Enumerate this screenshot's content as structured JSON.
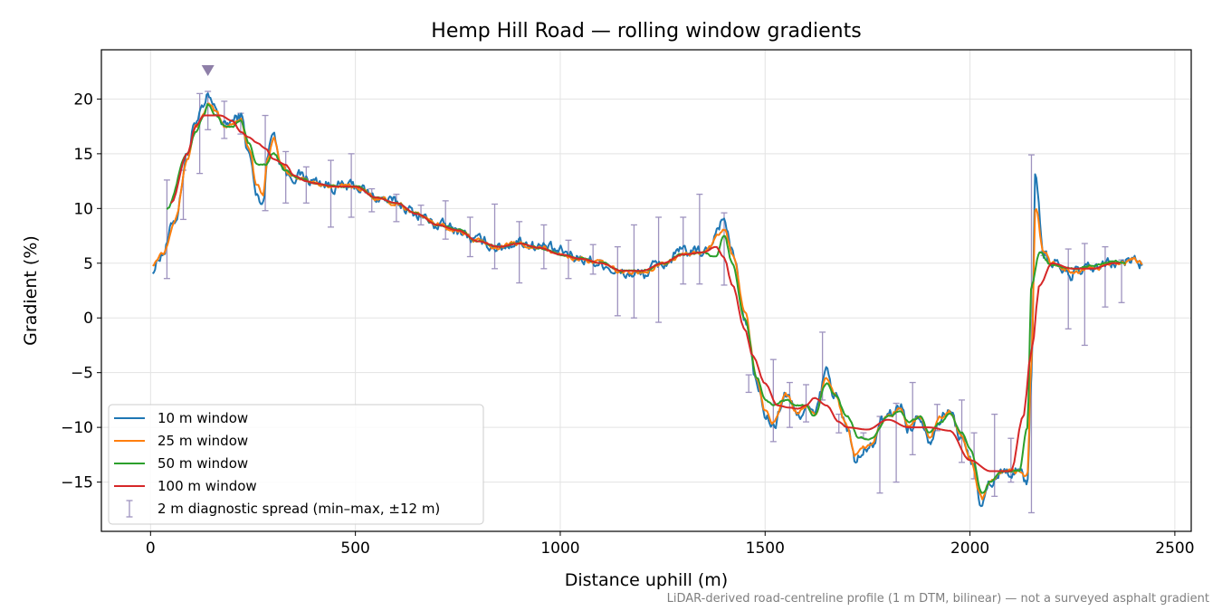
{
  "chart_data": {
    "type": "line",
    "title": "Hemp Hill Road — rolling window gradients",
    "xlabel": "Distance uphill (m)",
    "ylabel": "Gradient (%)",
    "footnote": "LiDAR-derived road-centreline profile (1 m DTM, bilinear) — not a surveyed asphalt gradient",
    "xlim": [
      -120,
      2540
    ],
    "ylim": [
      -19.5,
      24.5
    ],
    "xticks": [
      0,
      500,
      1000,
      1500,
      2000,
      2500
    ],
    "yticks": [
      -15,
      -10,
      -5,
      0,
      5,
      10,
      15,
      20
    ],
    "ytick_labels": [
      "−15",
      "−10",
      "−5",
      "0",
      "5",
      "10",
      "15",
      "20"
    ],
    "grid": true,
    "legend_position": "lower-left",
    "peak_marker": {
      "x": 140,
      "y": 22.6,
      "color": "#8e7fa8"
    },
    "colors": {
      "10m": "#1f77b4",
      "25m": "#ff7f0e",
      "50m": "#2ca02c",
      "100m": "#d62728",
      "spread": "#9e93bf"
    },
    "series": [
      {
        "name": "10 m window",
        "color": "#1f77b4",
        "noise": 0.9,
        "x": [
          5,
          30,
          60,
          90,
          110,
          130,
          140,
          160,
          180,
          200,
          220,
          240,
          260,
          275,
          285,
          300,
          320,
          340,
          360,
          400,
          450,
          500,
          550,
          600,
          650,
          700,
          750,
          800,
          850,
          900,
          950,
          1000,
          1050,
          1100,
          1150,
          1200,
          1250,
          1300,
          1350,
          1400,
          1420,
          1450,
          1480,
          1500,
          1520,
          1550,
          1580,
          1600,
          1620,
          1650,
          1670,
          1700,
          1720,
          1750,
          1800,
          1830,
          1850,
          1880,
          1900,
          1930,
          1950,
          1980,
          2000,
          2030,
          2050,
          2080,
          2100,
          2120,
          2140,
          2150,
          2160,
          2180,
          2200,
          2250,
          2300,
          2350,
          2380,
          2400,
          2420
        ],
        "y": [
          4.5,
          6,
          9,
          15,
          18,
          19,
          20,
          19,
          17.5,
          18,
          18.5,
          15,
          11,
          10.5,
          15,
          17,
          14,
          13,
          13,
          12.5,
          12,
          12,
          11,
          10.5,
          9.5,
          8.5,
          8,
          7,
          6.5,
          7,
          6.5,
          6,
          5.5,
          5,
          4,
          4,
          5,
          6,
          6,
          9,
          6,
          0,
          -6,
          -9,
          -10,
          -7,
          -9,
          -8,
          -9,
          -5,
          -7,
          -10,
          -13,
          -12,
          -9,
          -8,
          -10,
          -9,
          -11,
          -9,
          -8.5,
          -11,
          -13,
          -17,
          -15,
          -14,
          -14,
          -14,
          -15,
          -5,
          13,
          6,
          5,
          4,
          4.5,
          5,
          5,
          5.5,
          5
        ]
      },
      {
        "name": "25 m window",
        "color": "#ff7f0e",
        "noise": 0.35,
        "x": [
          5,
          30,
          60,
          90,
          110,
          130,
          140,
          160,
          180,
          200,
          220,
          240,
          260,
          275,
          285,
          300,
          320,
          340,
          360,
          400,
          450,
          500,
          550,
          600,
          650,
          700,
          750,
          800,
          850,
          900,
          950,
          1000,
          1050,
          1100,
          1150,
          1200,
          1250,
          1300,
          1350,
          1400,
          1420,
          1450,
          1480,
          1500,
          1520,
          1550,
          1580,
          1600,
          1620,
          1650,
          1670,
          1700,
          1720,
          1750,
          1800,
          1830,
          1850,
          1880,
          1900,
          1930,
          1950,
          1980,
          2000,
          2030,
          2050,
          2080,
          2100,
          2120,
          2140,
          2150,
          2160,
          2180,
          2200,
          2250,
          2300,
          2350,
          2380,
          2400,
          2420
        ],
        "y": [
          5,
          6,
          9,
          14.5,
          17.5,
          18.5,
          19.5,
          18.8,
          17.5,
          17.8,
          18.2,
          15.5,
          12,
          11.2,
          14.5,
          16.5,
          14,
          13,
          12.8,
          12.3,
          12,
          12,
          11,
          10.5,
          9.5,
          8.5,
          8,
          7,
          6.5,
          6.8,
          6.4,
          5.8,
          5.4,
          5,
          4.2,
          4.2,
          5,
          5.8,
          6,
          8,
          6,
          0.5,
          -5.5,
          -8.5,
          -9.5,
          -7,
          -8.8,
          -8,
          -8.8,
          -5.5,
          -7,
          -9.8,
          -12.5,
          -11.8,
          -9,
          -8.2,
          -9.8,
          -9,
          -10.8,
          -9,
          -8.6,
          -10.8,
          -12.8,
          -16.5,
          -15,
          -14,
          -14,
          -14,
          -14.5,
          -4,
          10,
          6,
          5,
          4.2,
          4.5,
          5,
          5,
          5.3,
          5
        ]
      },
      {
        "name": "50 m window",
        "color": "#2ca02c",
        "noise": 0.15,
        "x": [
          40,
          90,
          110,
          130,
          140,
          160,
          180,
          200,
          220,
          240,
          260,
          280,
          300,
          330,
          360,
          400,
          450,
          500,
          550,
          600,
          650,
          700,
          750,
          800,
          850,
          900,
          950,
          1000,
          1050,
          1100,
          1150,
          1200,
          1250,
          1300,
          1350,
          1380,
          1400,
          1420,
          1450,
          1480,
          1500,
          1520,
          1550,
          1580,
          1600,
          1620,
          1650,
          1670,
          1700,
          1730,
          1760,
          1800,
          1830,
          1850,
          1880,
          1900,
          1930,
          1950,
          1980,
          2000,
          2030,
          2050,
          2080,
          2100,
          2120,
          2140,
          2150,
          2170,
          2200,
          2250,
          2300,
          2350,
          2380
        ],
        "y": [
          10,
          15,
          17,
          18.5,
          19.5,
          18.5,
          17.5,
          17.5,
          18,
          16,
          14,
          14,
          15,
          13.5,
          12.8,
          12.3,
          12,
          12,
          11,
          10.5,
          9.5,
          8.5,
          8,
          7,
          6.5,
          6.8,
          6.4,
          5.8,
          5.4,
          5,
          4.3,
          4.3,
          5,
          5.8,
          6,
          5.5,
          7.5,
          5,
          0,
          -5.5,
          -7.5,
          -8,
          -7.5,
          -8,
          -8,
          -9,
          -6,
          -7,
          -9,
          -11,
          -11,
          -9,
          -8.5,
          -9.5,
          -9,
          -10.5,
          -9.5,
          -8.8,
          -10.5,
          -12,
          -16,
          -15,
          -14,
          -14,
          -14,
          -10,
          3,
          6,
          4.8,
          4.5,
          4.8,
          5.2,
          5
        ]
      },
      {
        "name": "100 m window",
        "color": "#d62728",
        "noise": 0,
        "x": [
          50,
          90,
          110,
          130,
          150,
          170,
          200,
          220,
          240,
          260,
          280,
          300,
          330,
          350,
          380,
          400,
          450,
          500,
          550,
          600,
          650,
          700,
          750,
          800,
          850,
          900,
          950,
          1000,
          1050,
          1100,
          1150,
          1200,
          1250,
          1300,
          1350,
          1380,
          1400,
          1420,
          1450,
          1470,
          1500,
          1530,
          1560,
          1580,
          1600,
          1620,
          1650,
          1680,
          1700,
          1750,
          1800,
          1850,
          1900,
          1950,
          2000,
          2050,
          2100,
          2130,
          2150,
          2170,
          2200,
          2250,
          2300,
          2350,
          2370
        ],
        "y": [
          10.5,
          15,
          17.5,
          18.5,
          18.5,
          18.5,
          18,
          17,
          16.5,
          16,
          15.5,
          14.5,
          14,
          13,
          12.5,
          12.3,
          12,
          12,
          11,
          10.5,
          9.5,
          8.5,
          8,
          7,
          6.5,
          6.8,
          6.4,
          5.8,
          5.4,
          5,
          4.3,
          4.3,
          5,
          5.8,
          6,
          6.5,
          5.5,
          3,
          -1,
          -3.5,
          -6,
          -8,
          -8.2,
          -8.3,
          -8,
          -7.3,
          -8,
          -9.5,
          -10,
          -10.2,
          -9.3,
          -10,
          -10,
          -10.3,
          -13,
          -14,
          -14,
          -9,
          -3,
          3,
          5,
          4.5,
          4.5,
          5,
          5
        ]
      }
    ],
    "spread": {
      "name": "2 m diagnostic spread (min–max, ±12 m)",
      "color": "#9e93bf",
      "x": [
        40,
        80,
        120,
        140,
        180,
        220,
        280,
        330,
        380,
        440,
        490,
        540,
        600,
        660,
        720,
        780,
        840,
        900,
        960,
        1020,
        1080,
        1140,
        1180,
        1240,
        1300,
        1340,
        1400,
        1460,
        1520,
        1560,
        1600,
        1640,
        1680,
        1740,
        1780,
        1820,
        1860,
        1920,
        1980,
        2010,
        2060,
        2100,
        2150,
        2180,
        2240,
        2280,
        2330,
        2370
      ],
      "mean": [
        8,
        10.5,
        17,
        19,
        18,
        17.6,
        14,
        13.8,
        12.5,
        11,
        12,
        11,
        10.5,
        9.5,
        8.5,
        8,
        7,
        6.5,
        6.5,
        5.5,
        6,
        4.7,
        4,
        4.3,
        5.5,
        7.2,
        5,
        -5.5,
        -7.5,
        -8,
        -7.5,
        -6,
        -9.5,
        -13.5,
        -11.5,
        -10.5,
        -11.5,
        -10,
        -10,
        -11,
        -12.5,
        -13,
        -1.5,
        6,
        2.5,
        4,
        5,
        4.5
      ],
      "lo": [
        3.6,
        9,
        13.2,
        17.2,
        16.4,
        16.8,
        9.8,
        10.5,
        10.5,
        8.3,
        9.2,
        9.7,
        8.8,
        8.5,
        7.2,
        5.6,
        4.5,
        3.2,
        4.5,
        3.6,
        4,
        0.2,
        0,
        -0.4,
        3.1,
        3.1,
        3,
        -6.8,
        -11.3,
        -10,
        -9.5,
        -7.5,
        -10.5,
        -11,
        -16,
        -15,
        -12.5,
        -10.3,
        -13.2,
        -14.7,
        -16.3,
        -15,
        -17.8,
        5.7,
        -1,
        -2.5,
        1,
        1.4
      ],
      "hi": [
        12.6,
        13.5,
        20.5,
        20.7,
        19.8,
        18.7,
        18.5,
        15.2,
        13.8,
        14.4,
        15,
        11.8,
        11.3,
        10.3,
        10.7,
        9.2,
        10.4,
        8.8,
        8.5,
        7.1,
        6.7,
        6.5,
        8.5,
        9.2,
        9.2,
        11.3,
        9.6,
        -5.2,
        -3.8,
        -5.9,
        -6.1,
        -1.3,
        -8.8,
        -10.5,
        -9,
        -7.8,
        -5.9,
        -7.9,
        -7.5,
        -10.5,
        -8.8,
        -11,
        14.9,
        6.1,
        6.3,
        6.8,
        6.5,
        5.3
      ]
    }
  }
}
